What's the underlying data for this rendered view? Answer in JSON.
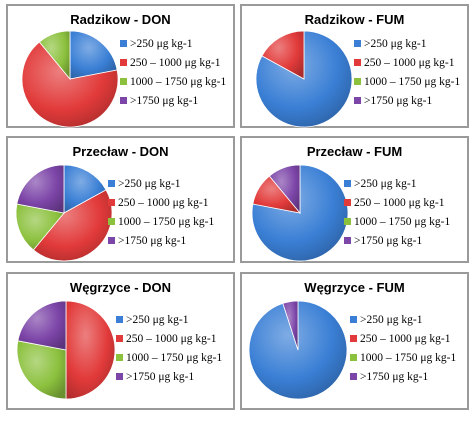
{
  "legend_labels": [
    ">250 μg kg-1",
    "250 – 1000 μg kg-1",
    "1000 – 1750 μg kg-1",
    ">1750 μg kg-1"
  ],
  "colors": [
    "#3a7fd5",
    "#e23a3a",
    "#8cc13e",
    "#7c45a8"
  ],
  "chart_data": [
    {
      "type": "pie",
      "title": "Radzikow - DON",
      "categories": [
        ">250 μg kg-1",
        "250 – 1000 μg kg-1",
        "1000 – 1750 μg kg-1",
        ">1750 μg kg-1"
      ],
      "values": [
        22,
        67,
        11,
        0
      ]
    },
    {
      "type": "pie",
      "title": "Radzikow - FUM",
      "categories": [
        ">250 μg kg-1",
        "250 – 1000 μg kg-1",
        "1000 – 1750 μg kg-1",
        ">1750 μg kg-1"
      ],
      "values": [
        83,
        17,
        0,
        0
      ]
    },
    {
      "type": "pie",
      "title": "Przecław - DON",
      "categories": [
        ">250 μg kg-1",
        "250 – 1000 μg kg-1",
        "1000 – 1750 μg kg-1",
        ">1750 μg kg-1"
      ],
      "values": [
        17,
        44,
        17,
        22
      ]
    },
    {
      "type": "pie",
      "title": "Przecław - FUM",
      "categories": [
        ">250 μg kg-1",
        "250 – 1000 μg kg-1",
        "1000 – 1750 μg kg-1",
        ">1750 μg kg-1"
      ],
      "values": [
        78,
        11,
        0,
        11
      ]
    },
    {
      "type": "pie",
      "title": "Węgrzyce - DON",
      "categories": [
        ">250 μg kg-1",
        "250 – 1000 μg kg-1",
        "1000 – 1750 μg kg-1",
        ">1750 μg kg-1"
      ],
      "values": [
        0,
        50,
        28,
        22
      ]
    },
    {
      "type": "pie",
      "title": "Węgrzyce - FUM",
      "categories": [
        ">250 μg kg-1",
        "250 – 1000 μg kg-1",
        "1000 – 1750 μg kg-1",
        ">1750 μg kg-1"
      ],
      "values": [
        95,
        0,
        0,
        5
      ]
    }
  ]
}
